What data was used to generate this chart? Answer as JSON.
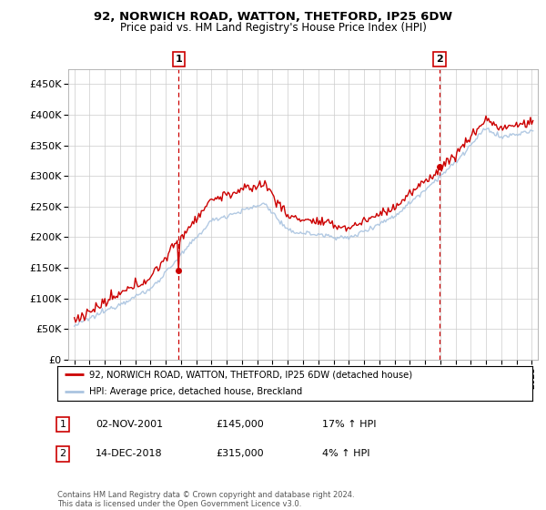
{
  "title": "92, NORWICH ROAD, WATTON, THETFORD, IP25 6DW",
  "subtitle": "Price paid vs. HM Land Registry's House Price Index (HPI)",
  "ylim": [
    0,
    475000
  ],
  "yticks": [
    0,
    50000,
    100000,
    150000,
    200000,
    250000,
    300000,
    350000,
    400000,
    450000
  ],
  "ytick_labels": [
    "£0",
    "£50K",
    "£100K",
    "£150K",
    "£200K",
    "£250K",
    "£300K",
    "£350K",
    "£400K",
    "£450K"
  ],
  "sale1_x": 2001.84,
  "sale1_y": 145000,
  "sale2_x": 2018.95,
  "sale2_y": 315000,
  "legend_line1": "92, NORWICH ROAD, WATTON, THETFORD, IP25 6DW (detached house)",
  "legend_line2": "HPI: Average price, detached house, Breckland",
  "table_rows": [
    {
      "num": "1",
      "date": "02-NOV-2001",
      "price": "£145,000",
      "hpi": "17% ↑ HPI"
    },
    {
      "num": "2",
      "date": "14-DEC-2018",
      "price": "£315,000",
      "hpi": "4% ↑ HPI"
    }
  ],
  "footnote": "Contains HM Land Registry data © Crown copyright and database right 2024.\nThis data is licensed under the Open Government Licence v3.0.",
  "line_color_property": "#cc0000",
  "line_color_hpi": "#aac4e0",
  "sale_marker_color": "#cc0000",
  "vline_color": "#cc0000",
  "background_color": "#ffffff",
  "grid_color": "#cccccc",
  "xlim_left": 1994.6,
  "xlim_right": 2025.4
}
